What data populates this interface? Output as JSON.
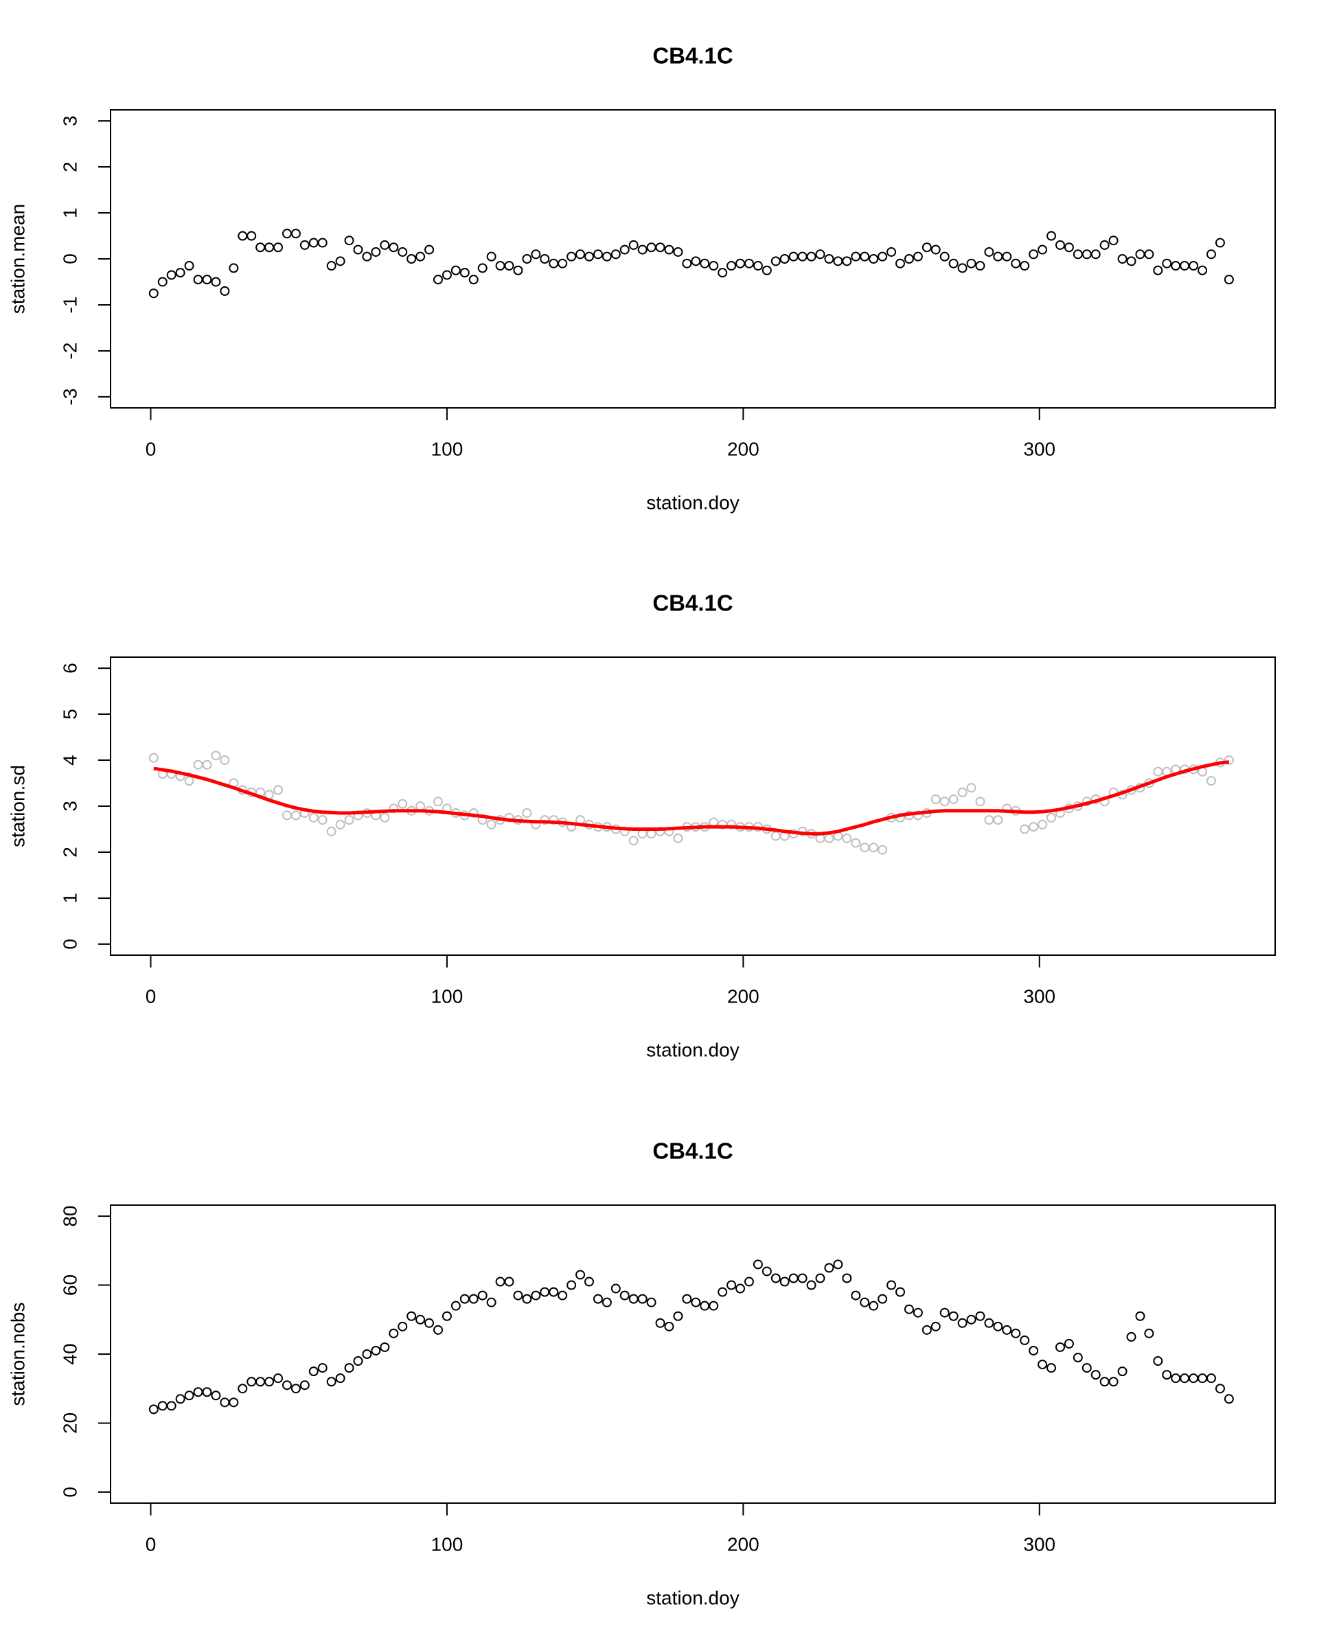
{
  "chart_data": [
    {
      "type": "scatter",
      "title": "CB4.1C",
      "xlabel": "station.doy",
      "ylabel": "station.mean",
      "xlim": [
        -13.56,
        379.56
      ],
      "ylim": [
        -3.24,
        3.24
      ],
      "xticks": [
        0,
        100,
        200,
        300
      ],
      "yticks": [
        -3,
        -2,
        -1,
        0,
        1,
        2,
        3
      ],
      "x": [
        1,
        4,
        7,
        10,
        13,
        16,
        19,
        22,
        25,
        28,
        31,
        34,
        37,
        40,
        43,
        46,
        49,
        52,
        55,
        58,
        61,
        64,
        67,
        70,
        73,
        76,
        79,
        82,
        85,
        88,
        91,
        94,
        97,
        100,
        103,
        106,
        109,
        112,
        115,
        118,
        121,
        124,
        127,
        130,
        133,
        136,
        139,
        142,
        145,
        148,
        151,
        154,
        157,
        160,
        163,
        166,
        169,
        172,
        175,
        178,
        181,
        184,
        187,
        190,
        193,
        196,
        199,
        202,
        205,
        208,
        211,
        214,
        217,
        220,
        223,
        226,
        229,
        232,
        235,
        238,
        241,
        244,
        247,
        250,
        253,
        256,
        259,
        262,
        265,
        268,
        271,
        274,
        277,
        280,
        283,
        286,
        289,
        292,
        295,
        298,
        301,
        304,
        307,
        310,
        313,
        316,
        319,
        322,
        325,
        328,
        331,
        334,
        337,
        340,
        343,
        346,
        349,
        352,
        355,
        358,
        361,
        364
      ],
      "series": [
        {
          "color": "#000000",
          "style": "points",
          "values": [
            -0.75,
            -0.5,
            -0.35,
            -0.3,
            -0.15,
            -0.45,
            -0.45,
            -0.5,
            -0.7,
            -0.2,
            0.5,
            0.5,
            0.25,
            0.25,
            0.25,
            0.55,
            0.55,
            0.3,
            0.35,
            0.35,
            -0.15,
            -0.05,
            0.4,
            0.2,
            0.05,
            0.15,
            0.3,
            0.25,
            0.15,
            0.0,
            0.05,
            0.2,
            -0.45,
            -0.35,
            -0.25,
            -0.3,
            -0.45,
            -0.2,
            0.05,
            -0.15,
            -0.15,
            -0.25,
            0.0,
            0.1,
            0.0,
            -0.1,
            -0.1,
            0.05,
            0.1,
            0.05,
            0.1,
            0.05,
            0.1,
            0.2,
            0.3,
            0.2,
            0.25,
            0.25,
            0.2,
            0.15,
            -0.1,
            -0.05,
            -0.1,
            -0.15,
            -0.3,
            -0.15,
            -0.1,
            -0.1,
            -0.15,
            -0.25,
            -0.05,
            0.0,
            0.05,
            0.05,
            0.05,
            0.1,
            0.0,
            -0.05,
            -0.05,
            0.05,
            0.05,
            0.0,
            0.05,
            0.15,
            -0.1,
            0.0,
            0.05,
            0.25,
            0.2,
            0.05,
            -0.1,
            -0.2,
            -0.1,
            -0.15,
            0.15,
            0.05,
            0.05,
            -0.1,
            -0.15,
            0.1,
            0.2,
            0.5,
            0.3,
            0.25,
            0.1,
            0.1,
            0.1,
            0.3,
            0.4,
            0.0,
            -0.05,
            0.1,
            0.1,
            -0.25,
            -0.1,
            -0.15,
            -0.15,
            -0.15,
            -0.25,
            0.1,
            0.35,
            -0.45
          ]
        }
      ]
    },
    {
      "type": "scatter",
      "title": "CB4.1C",
      "xlabel": "station.doy",
      "ylabel": "station.sd",
      "xlim": [
        -13.56,
        379.56
      ],
      "ylim": [
        -0.24,
        6.24
      ],
      "xticks": [
        0,
        100,
        200,
        300
      ],
      "yticks": [
        0,
        1,
        2,
        3,
        4,
        5,
        6
      ],
      "x": [
        1,
        4,
        7,
        10,
        13,
        16,
        19,
        22,
        25,
        28,
        31,
        34,
        37,
        40,
        43,
        46,
        49,
        52,
        55,
        58,
        61,
        64,
        67,
        70,
        73,
        76,
        79,
        82,
        85,
        88,
        91,
        94,
        97,
        100,
        103,
        106,
        109,
        112,
        115,
        118,
        121,
        124,
        127,
        130,
        133,
        136,
        139,
        142,
        145,
        148,
        151,
        154,
        157,
        160,
        163,
        166,
        169,
        172,
        175,
        178,
        181,
        184,
        187,
        190,
        193,
        196,
        199,
        202,
        205,
        208,
        211,
        214,
        217,
        220,
        223,
        226,
        229,
        232,
        235,
        238,
        241,
        244,
        247,
        250,
        253,
        256,
        259,
        262,
        265,
        268,
        271,
        274,
        277,
        280,
        283,
        286,
        289,
        292,
        295,
        298,
        301,
        304,
        307,
        310,
        313,
        316,
        319,
        322,
        325,
        328,
        331,
        334,
        337,
        340,
        343,
        346,
        349,
        352,
        355,
        358,
        361,
        364
      ],
      "series": [
        {
          "color": "#bebebe",
          "style": "points",
          "values": [
            4.05,
            3.7,
            3.7,
            3.65,
            3.55,
            3.9,
            3.9,
            4.1,
            4.0,
            3.5,
            3.35,
            3.3,
            3.3,
            3.25,
            3.35,
            2.8,
            2.8,
            2.85,
            2.75,
            2.7,
            2.45,
            2.6,
            2.7,
            2.8,
            2.85,
            2.8,
            2.75,
            2.95,
            3.05,
            2.9,
            3.0,
            2.9,
            3.1,
            2.95,
            2.85,
            2.8,
            2.85,
            2.7,
            2.6,
            2.7,
            2.75,
            2.7,
            2.85,
            2.6,
            2.7,
            2.7,
            2.65,
            2.55,
            2.7,
            2.6,
            2.55,
            2.55,
            2.5,
            2.45,
            2.25,
            2.4,
            2.4,
            2.45,
            2.45,
            2.3,
            2.55,
            2.55,
            2.55,
            2.65,
            2.6,
            2.6,
            2.55,
            2.55,
            2.55,
            2.5,
            2.35,
            2.35,
            2.4,
            2.45,
            2.4,
            2.3,
            2.3,
            2.35,
            2.3,
            2.2,
            2.1,
            2.1,
            2.05,
            2.75,
            2.75,
            2.8,
            2.8,
            2.85,
            3.15,
            3.1,
            3.15,
            3.3,
            3.4,
            3.1,
            2.7,
            2.7,
            2.95,
            2.9,
            2.5,
            2.55,
            2.6,
            2.75,
            2.85,
            2.95,
            3.0,
            3.1,
            3.15,
            3.1,
            3.3,
            3.25,
            3.35,
            3.4,
            3.5,
            3.75,
            3.75,
            3.8,
            3.8,
            3.8,
            3.75,
            3.55,
            3.95,
            4.0
          ]
        },
        {
          "color": "#ff0000",
          "style": "line",
          "values": [
            3.82,
            3.79,
            3.76,
            3.72,
            3.68,
            3.63,
            3.58,
            3.52,
            3.46,
            3.4,
            3.33,
            3.27,
            3.2,
            3.13,
            3.07,
            3.01,
            2.96,
            2.92,
            2.89,
            2.87,
            2.86,
            2.85,
            2.85,
            2.86,
            2.87,
            2.88,
            2.89,
            2.9,
            2.9,
            2.9,
            2.9,
            2.89,
            2.88,
            2.86,
            2.84,
            2.82,
            2.8,
            2.78,
            2.75,
            2.72,
            2.7,
            2.68,
            2.67,
            2.66,
            2.66,
            2.65,
            2.64,
            2.62,
            2.6,
            2.58,
            2.56,
            2.54,
            2.52,
            2.51,
            2.5,
            2.5,
            2.5,
            2.5,
            2.51,
            2.52,
            2.53,
            2.54,
            2.55,
            2.55,
            2.55,
            2.55,
            2.54,
            2.53,
            2.52,
            2.5,
            2.48,
            2.45,
            2.43,
            2.41,
            2.4,
            2.4,
            2.42,
            2.45,
            2.5,
            2.55,
            2.6,
            2.66,
            2.71,
            2.76,
            2.8,
            2.83,
            2.85,
            2.87,
            2.89,
            2.9,
            2.9,
            2.9,
            2.9,
            2.9,
            2.9,
            2.9,
            2.89,
            2.88,
            2.87,
            2.87,
            2.88,
            2.9,
            2.93,
            2.97,
            3.01,
            3.06,
            3.11,
            3.17,
            3.23,
            3.29,
            3.36,
            3.43,
            3.5,
            3.57,
            3.64,
            3.7,
            3.76,
            3.81,
            3.86,
            3.9,
            3.94,
            3.96
          ]
        }
      ]
    },
    {
      "type": "scatter",
      "title": "CB4.1C",
      "xlabel": "station.doy",
      "ylabel": "station.nobs",
      "xlim": [
        -13.56,
        379.56
      ],
      "ylim": [
        -3.2,
        83.2
      ],
      "xticks": [
        0,
        100,
        200,
        300
      ],
      "yticks": [
        0,
        20,
        40,
        60,
        80
      ],
      "x": [
        1,
        4,
        7,
        10,
        13,
        16,
        19,
        22,
        25,
        28,
        31,
        34,
        37,
        40,
        43,
        46,
        49,
        52,
        55,
        58,
        61,
        64,
        67,
        70,
        73,
        76,
        79,
        82,
        85,
        88,
        91,
        94,
        97,
        100,
        103,
        106,
        109,
        112,
        115,
        118,
        121,
        124,
        127,
        130,
        133,
        136,
        139,
        142,
        145,
        148,
        151,
        154,
        157,
        160,
        163,
        166,
        169,
        172,
        175,
        178,
        181,
        184,
        187,
        190,
        193,
        196,
        199,
        202,
        205,
        208,
        211,
        214,
        217,
        220,
        223,
        226,
        229,
        232,
        235,
        238,
        241,
        244,
        247,
        250,
        253,
        256,
        259,
        262,
        265,
        268,
        271,
        274,
        277,
        280,
        283,
        286,
        289,
        292,
        295,
        298,
        301,
        304,
        307,
        310,
        313,
        316,
        319,
        322,
        325,
        328,
        331,
        334,
        337,
        340,
        343,
        346,
        349,
        352,
        355,
        358,
        361,
        364
      ],
      "series": [
        {
          "color": "#000000",
          "style": "points",
          "values": [
            24,
            25,
            25,
            27,
            28,
            29,
            29,
            28,
            26,
            26,
            30,
            32,
            32,
            32,
            33,
            31,
            30,
            31,
            35,
            36,
            32,
            33,
            36,
            38,
            40,
            41,
            42,
            46,
            48,
            51,
            50,
            49,
            47,
            51,
            54,
            56,
            56,
            57,
            55,
            61,
            61,
            57,
            56,
            57,
            58,
            58,
            57,
            60,
            63,
            61,
            56,
            55,
            59,
            57,
            56,
            56,
            55,
            49,
            48,
            51,
            56,
            55,
            54,
            54,
            58,
            60,
            59,
            61,
            66,
            64,
            62,
            61,
            62,
            62,
            60,
            62,
            65,
            66,
            62,
            57,
            55,
            54,
            56,
            60,
            58,
            53,
            52,
            47,
            48,
            52,
            51,
            49,
            50,
            51,
            49,
            48,
            47,
            46,
            44,
            41,
            37,
            36,
            42,
            43,
            39,
            36,
            34,
            32,
            32,
            35,
            45,
            51,
            46,
            38,
            34,
            33,
            33,
            33,
            33,
            33,
            30,
            27
          ]
        }
      ]
    }
  ]
}
